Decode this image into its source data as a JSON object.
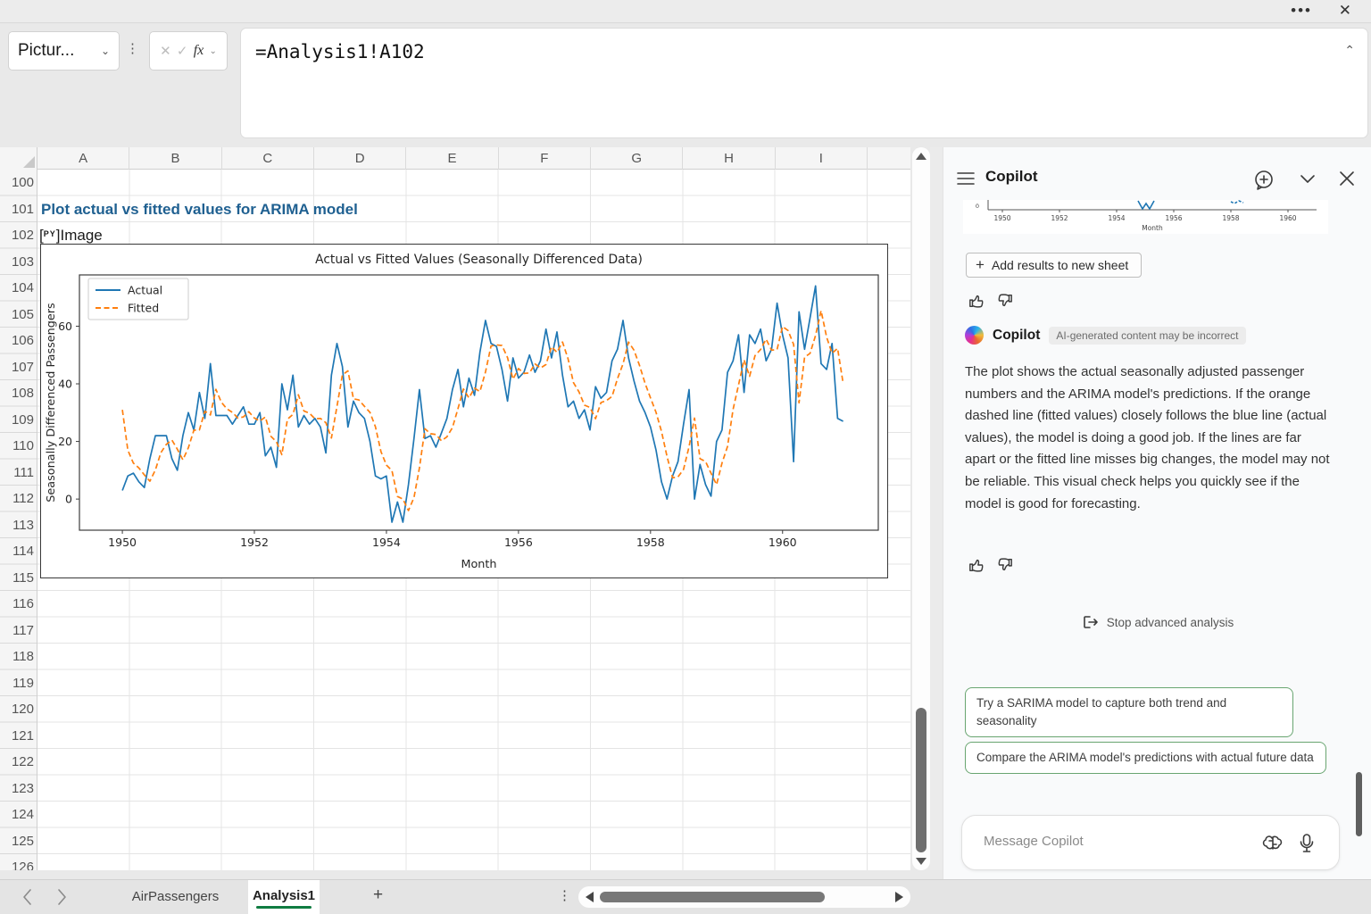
{
  "titlebar": {
    "more_icon": "ellipsis",
    "close_icon": "close"
  },
  "name_box": {
    "value": "Pictur..."
  },
  "formula_bar": {
    "formula": "=Analysis1!A102",
    "fx_label": "fx"
  },
  "grid": {
    "columns": [
      "A",
      "B",
      "C",
      "D",
      "E",
      "F",
      "G",
      "H",
      "I"
    ],
    "rows": [
      100,
      101,
      102,
      103,
      104,
      105,
      106,
      107,
      108,
      109,
      110,
      111,
      112,
      113,
      114,
      115,
      116,
      117,
      118,
      119,
      120,
      121,
      122,
      123,
      124,
      125,
      126
    ],
    "cells": {
      "heading": "Plot actual vs fitted values for ARIMA model",
      "py_badge": "PY",
      "image_label": "Image"
    }
  },
  "chart_data": {
    "type": "line",
    "title": "Actual vs Fitted Values (Seasonally Differenced Data)",
    "xlabel": "Month",
    "ylabel": "Seasonally Differenced Passengers",
    "x_start": 1950,
    "x_step_years": 0.08333333,
    "xlim": [
      1949.35,
      1961.45
    ],
    "ylim": [
      -10.8,
      77.8
    ],
    "xticks": [
      1950,
      1952,
      1954,
      1956,
      1958,
      1960
    ],
    "yticks": [
      0,
      20,
      40,
      60
    ],
    "grid": false,
    "legend_position": "upper-left",
    "series": [
      {
        "name": "Actual",
        "color": "#1f77b4",
        "style": "solid",
        "values": [
          3,
          8,
          9,
          6,
          4,
          14,
          22,
          22,
          22,
          14,
          10,
          22,
          30,
          24,
          37,
          28,
          47,
          29,
          29,
          29,
          26,
          29,
          32,
          26,
          26,
          30,
          15,
          18,
          11,
          40,
          31,
          43,
          25,
          29,
          26,
          28,
          25,
          16,
          43,
          54,
          46,
          25,
          34,
          30,
          28,
          20,
          8,
          7,
          8,
          -8,
          -1,
          -8,
          5,
          21,
          38,
          21,
          22,
          18,
          23,
          28,
          38,
          45,
          32,
          42,
          36,
          51,
          62,
          54,
          53,
          45,
          34,
          49,
          42,
          44,
          50,
          44,
          48,
          59,
          49,
          58,
          43,
          32,
          34,
          28,
          31,
          24,
          39,
          35,
          37,
          48,
          52,
          62,
          49,
          41,
          34,
          30,
          25,
          17,
          6,
          0,
          8,
          13,
          26,
          38,
          0,
          12,
          5,
          1,
          20,
          24,
          44,
          48,
          57,
          37,
          57,
          54,
          59,
          48,
          52,
          68,
          57,
          49,
          13,
          65,
          52,
          63,
          74,
          47,
          45,
          54,
          28,
          27
        ]
      },
      {
        "name": "Fitted",
        "color": "#ff7f0e",
        "style": "dashed",
        "values": [
          31,
          17,
          12.5,
          10.8,
          8.4,
          6.2,
          10.1,
          16.1,
          19,
          20.5,
          17.3,
          13.6,
          17.8,
          23.9,
          24,
          30.5,
          29.2,
          38.1,
          33.6,
          31.3,
          30.1,
          28.1,
          28.5,
          30.3,
          28.1,
          27.1,
          28.5,
          21.8,
          19.9,
          15.4,
          27.7,
          29.4,
          36.2,
          30.6,
          29.8,
          27.9,
          28,
          26.5,
          21.2,
          32.1,
          43.1,
          44.5,
          34.8,
          34.4,
          32.2,
          30.1,
          25.1,
          16.5,
          11.8,
          9.9,
          0.9,
          0,
          -4,
          0.5,
          10.8,
          24.4,
          22.7,
          22.4,
          20.2,
          21.6,
          24.8,
          31.4,
          38.2,
          35.1,
          38.5,
          37.3,
          44.1,
          53.1,
          53.5,
          53.3,
          49.1,
          41.6,
          45.3,
          43.6,
          43.8,
          46.9,
          45.5,
          46.7,
          52.9,
          50.9,
          54.5,
          48.7,
          40.4,
          37.2,
          32.6,
          31.8,
          27.9,
          33.5,
          34.2,
          35.6,
          41.8,
          46.9,
          54.5,
          51.7,
          46.4,
          40.2,
          35.1,
          30.1,
          23.5,
          14.8,
          7.4,
          7.7,
          10.3,
          18.2,
          28.1,
          14,
          13,
          9,
          5,
          12.5,
          18.3,
          31.1,
          39.6,
          48.3,
          42.6,
          49.8,
          51.9,
          55.5,
          51.7,
          51.9,
          59.9,
          58.5,
          53.7,
          33.4,
          49.2,
          50.6,
          56.8,
          65.4,
          56.2,
          50.6,
          52.3,
          40.2
        ]
      }
    ]
  },
  "copilot": {
    "title": "Copilot",
    "thumbnail": {
      "xticks": [
        "1950",
        "1952",
        "1954",
        "1956",
        "1958",
        "1960"
      ],
      "xlabel": "Month",
      "ytick": "0"
    },
    "add_results_label": "Add results to new sheet",
    "sender": "Copilot",
    "disclaimer": "AI-generated content may be incorrect",
    "message": "The plot shows the actual seasonally adjusted passenger numbers and the ARIMA model's predictions. If the orange dashed line (fitted values) closely follows the blue line (actual values), the model is doing a good job. If the lines are far apart or the fitted line misses big changes, the model may not be reliable. This visual check helps you quickly see if the model is good for forecasting.",
    "stop_label": "Stop advanced analysis",
    "suggestions": [
      "Try a SARIMA model to capture both trend and seasonality",
      "Compare the ARIMA model's predictions with actual future data"
    ],
    "input_placeholder": "Message Copilot",
    "accent_green": "#69a571"
  },
  "tabbar": {
    "sheets": [
      {
        "label": "AirPassengers",
        "active": false
      },
      {
        "label": "Analysis1",
        "active": true
      }
    ],
    "active_underline_color": "#107c41"
  }
}
